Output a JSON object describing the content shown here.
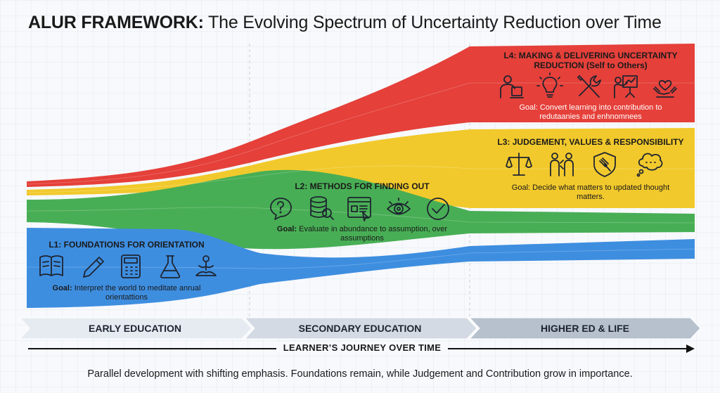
{
  "title": {
    "strong": "ALUR FRAMEWORK:",
    "rest": " The Evolving Spectrum of Uncertainty Reduction over Time"
  },
  "colors": {
    "l1": "#3e8ee0",
    "l2": "#48ae55",
    "l3": "#f2c92c",
    "l4": "#e5403a"
  },
  "layers": {
    "l1": {
      "title": "L1: FOUNDATIONS FOR ORIENTATION",
      "goal_label": "Goal:",
      "goal_text": " Interpret the world to meditate anrual orientattions",
      "icons": [
        "book-icon",
        "pen-icon",
        "calculator-icon",
        "flask-icon",
        "meditation-icon"
      ]
    },
    "l2": {
      "title": "L2: METHODS FOR FINDING OUT",
      "goal_label": "Goal:",
      "goal_text": " Evaluate in abundance to assumption, over assumptions",
      "icons": [
        "question-bubble-icon",
        "database-search-icon",
        "data-screen-icon",
        "eye-icon",
        "checkmark-icon"
      ]
    },
    "l3": {
      "title": "L3: JUDGEMENT, VALUES & RESPONSIBILITY",
      "goal_text": "Goal: Decide what matters to updated thought matters.",
      "icons": [
        "scales-icon",
        "people-discussion-icon",
        "shield-gavel-icon",
        "thought-bubble-icon"
      ]
    },
    "l4": {
      "title": "L4: MAKING & DELIVERING UNCERTAINTY REDUCTION (Self to Others)",
      "goal_text": "Goal: Convert learning into contribution to redutaanies and enhnomnees",
      "icons": [
        "person-device-icon",
        "lightbulb-icon",
        "tools-icon",
        "presenter-icon",
        "heart-hands-icon"
      ]
    }
  },
  "stages": [
    "EARLY EDUCATION",
    "SECONDARY EDUCATION",
    "HIGHER ED & LIFE"
  ],
  "journey": "LEARNER’S JOURNEY OVER TIME",
  "footer": "Parallel development with shifting emphasis. Foundations remain, while Judgement and Contribution grow in importance."
}
